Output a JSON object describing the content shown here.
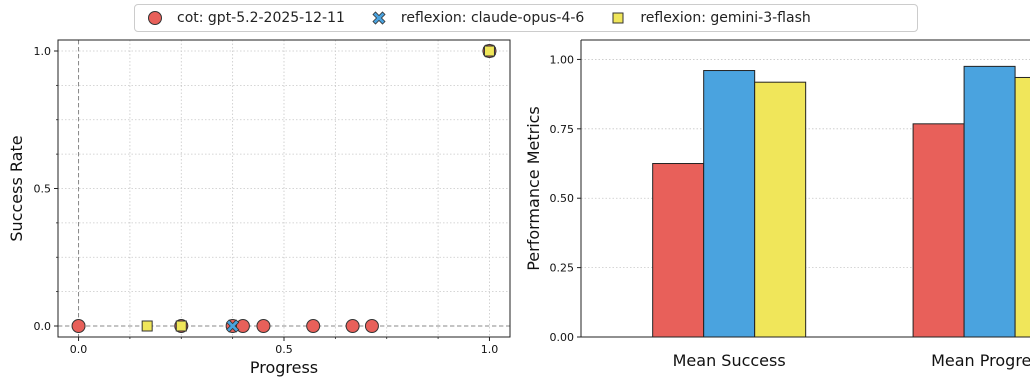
{
  "legend": [
    {
      "label": "cot: gpt-5.2-2025-12-11",
      "marker": "circle",
      "color": "#e8605a"
    },
    {
      "label": "reflexion: claude-opus-4-6",
      "marker": "x-icon",
      "color": "#4aa3df"
    },
    {
      "label": "reflexion: gemini-3-flash",
      "marker": "square",
      "color": "#f0e65a"
    }
  ],
  "chart_data": [
    {
      "type": "scatter",
      "xlabel": "Progress",
      "ylabel": "Success Rate",
      "xlim": [
        -0.05,
        1.05
      ],
      "ylim": [
        -0.04,
        1.04
      ],
      "xticks": [
        0.0,
        0.5,
        1.0
      ],
      "xtick_labels": [
        "0.0",
        "0.5",
        "1.0"
      ],
      "yticks": [
        0.0,
        0.5,
        1.0
      ],
      "ytick_labels": [
        "0.0",
        "0.5",
        "1.0"
      ],
      "grid": true,
      "series": [
        {
          "name": "cot: gpt-5.2-2025-12-11",
          "color": "#e8605a",
          "marker": "circle",
          "points": [
            [
              0.0,
              0.0
            ],
            [
              0.25,
              0.0
            ],
            [
              0.375,
              0.0
            ],
            [
              0.4,
              0.0
            ],
            [
              0.45,
              0.0
            ],
            [
              0.571,
              0.0
            ],
            [
              0.667,
              0.0
            ],
            [
              0.714,
              0.0
            ],
            [
              1.0,
              1.0
            ]
          ]
        },
        {
          "name": "reflexion: claude-opus-4-6",
          "color": "#4aa3df",
          "marker": "x-icon",
          "points": [
            [
              0.375,
              0.0
            ],
            [
              1.0,
              1.0
            ]
          ]
        },
        {
          "name": "reflexion: gemini-3-flash",
          "color": "#f0e65a",
          "marker": "square",
          "points": [
            [
              0.167,
              0.0
            ],
            [
              0.25,
              0.0
            ],
            [
              1.0,
              1.0
            ]
          ]
        }
      ]
    },
    {
      "type": "bar",
      "ylabel": "Performance Metrics",
      "categories": [
        "Mean Success",
        "Mean Progress"
      ],
      "ylim": [
        0,
        1.07
      ],
      "yticks": [
        0.0,
        0.25,
        0.5,
        0.75,
        1.0
      ],
      "ytick_labels": [
        "0.00",
        "0.25",
        "0.50",
        "0.75",
        "1.00"
      ],
      "grid": true,
      "series": [
        {
          "name": "cot: gpt-5.2-2025-12-11",
          "color": "#e8605a",
          "values": [
            0.625,
            0.768
          ]
        },
        {
          "name": "reflexion: claude-opus-4-6",
          "color": "#4aa3df",
          "values": [
            0.96,
            0.975
          ]
        },
        {
          "name": "reflexion: gemini-3-flash",
          "color": "#f0e65a",
          "values": [
            0.918,
            0.935
          ]
        }
      ]
    }
  ]
}
